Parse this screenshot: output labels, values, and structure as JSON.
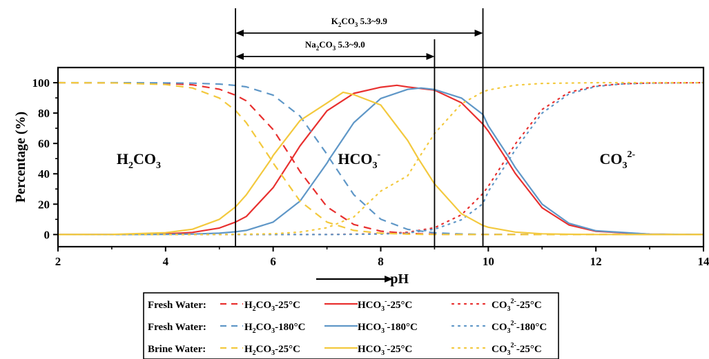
{
  "chart_data": {
    "type": "line",
    "xlabel": "pH",
    "ylabel": "Percentage (%)",
    "xlim": [
      2,
      14
    ],
    "ylim": [
      -8,
      110
    ],
    "xticks": [
      2,
      4,
      6,
      8,
      10,
      12,
      14
    ],
    "yticks": [
      0,
      20,
      40,
      60,
      80,
      100
    ],
    "grid": false,
    "legend_position": "bottom",
    "regions": [
      {
        "species": "H2CO3",
        "text": "H",
        "sub": "2",
        "tail": "CO",
        "sub2": "3",
        "sup": "",
        "x": 3.5,
        "y": 50
      },
      {
        "species": "HCO3-",
        "text": "HCO",
        "sub": "3",
        "tail": "",
        "sub2": "",
        "sup": "-",
        "x": 7.6,
        "y": 50
      },
      {
        "species": "CO32-",
        "text": "CO",
        "sub": "3",
        "tail": "",
        "sub2": "",
        "sup": "2-",
        "x": 12.4,
        "y": 50
      }
    ],
    "vertical_lines": [
      5.3,
      9.0,
      9.9
    ],
    "ranges": [
      {
        "name": "K2CO3",
        "label_base": "K",
        "label_sub": "2",
        "label_mid": "CO",
        "label_sub2": "3",
        "label_tail": " 5.3~9.9",
        "from": 5.3,
        "to": 9.9
      },
      {
        "name": "Na2CO3",
        "label_base": "Na",
        "label_sub": "2",
        "label_mid": "CO",
        "label_sub2": "3",
        "label_tail": " 5.3~9.0",
        "from": 5.3,
        "to": 9.0
      }
    ],
    "ph_arrow": {
      "from": 6.8,
      "to": 8.2
    },
    "conditions": [
      {
        "group": "Fresh Water:",
        "temp": "25°C",
        "pK1": 6.35,
        "pK2": 10.33,
        "color": "#e8302f"
      },
      {
        "group": "Fresh Water:",
        "temp": "180°C",
        "pK1": 7.05,
        "pK2": 10.4,
        "color": "#5f97c7"
      },
      {
        "group": "Brine Water:",
        "temp": "25°C",
        "pK1": 5.95,
        "pK2": 8.7,
        "color": "#f3c93e"
      }
    ],
    "species_labels": {
      "h2co3": {
        "base": "H",
        "sub": "2",
        "tail": "CO",
        "sub2": "3"
      },
      "hco3": {
        "base": "HCO",
        "sub": "3",
        "sup": "-"
      },
      "co3": {
        "base": "CO",
        "sub": "3",
        "sup": "2-"
      }
    },
    "series": [
      {
        "species": "H2CO3",
        "condition": 0,
        "style": "dashed",
        "x": [
          2,
          3,
          4,
          4.5,
          5,
          5.3,
          5.5,
          6,
          6.35,
          6.5,
          7,
          7.5,
          8,
          8.5,
          9,
          10,
          11,
          12,
          13,
          14
        ],
        "values": [
          100,
          99.9,
          99.6,
          98.6,
          95.7,
          91.8,
          88.1,
          69.1,
          50,
          41.5,
          18.3,
          6.6,
          2.2,
          0.7,
          0.2,
          0,
          0,
          0,
          0,
          0
        ]
      },
      {
        "species": "HCO3-",
        "condition": 0,
        "style": "solid",
        "x": [
          2,
          3,
          4,
          4.5,
          5,
          5.3,
          5.5,
          6,
          6.35,
          6.5,
          7,
          7.5,
          8,
          8.3,
          8.5,
          9,
          9.5,
          9.9,
          10,
          10.33,
          10.5,
          11,
          11.5,
          12,
          13,
          14
        ],
        "values": [
          0,
          0.04,
          0.4,
          1.4,
          4.3,
          8.2,
          11.9,
          30.9,
          50,
          58.4,
          81.5,
          93,
          97,
          98.3,
          97.2,
          95.1,
          86.8,
          72.7,
          68.1,
          50,
          40.3,
          17.6,
          6.3,
          2.1,
          0.2,
          0
        ]
      },
      {
        "species": "CO32-",
        "condition": 0,
        "style": "dotted",
        "x": [
          2,
          5,
          6,
          7,
          8,
          8.5,
          9,
          9.5,
          9.9,
          10,
          10.33,
          10.5,
          11,
          11.5,
          12,
          12.5,
          13,
          14
        ],
        "values": [
          0,
          0,
          0,
          0.05,
          0.5,
          1.5,
          4.5,
          13,
          27,
          31.8,
          50,
          59.6,
          82.4,
          93.7,
          97.9,
          99.3,
          99.8,
          100
        ]
      },
      {
        "species": "H2CO3",
        "condition": 1,
        "style": "dashed",
        "x": [
          2,
          3,
          4,
          4.5,
          5,
          5.3,
          5.5,
          6,
          6.5,
          7,
          7.05,
          7.5,
          8,
          8.5,
          9,
          9.5,
          10,
          11,
          12,
          14
        ],
        "values": [
          100,
          100,
          99.9,
          99.7,
          99.1,
          98.2,
          97.3,
          91.8,
          78,
          52.9,
          50,
          26.2,
          10.1,
          3.4,
          1.1,
          0.35,
          0.1,
          0,
          0,
          0
        ]
      },
      {
        "species": "HCO3-",
        "condition": 1,
        "style": "solid",
        "x": [
          2,
          3,
          4,
          4.5,
          5,
          5.3,
          5.5,
          6,
          6.5,
          7,
          7.05,
          7.5,
          8,
          8.5,
          8.75,
          9,
          9.5,
          9.9,
          10,
          10.4,
          10.5,
          11,
          11.5,
          12,
          13,
          14
        ],
        "values": [
          0,
          0,
          0.1,
          0.3,
          0.9,
          1.8,
          2.7,
          8.2,
          22,
          47,
          50,
          73.7,
          89.6,
          95.6,
          96.5,
          95.5,
          89.9,
          79.1,
          71.6,
          50,
          44.2,
          20,
          7.4,
          2.5,
          0.25,
          0
        ]
      },
      {
        "species": "CO32-",
        "condition": 1,
        "style": "dotted",
        "x": [
          2,
          6,
          7,
          8,
          8.5,
          9,
          9.5,
          9.9,
          10,
          10.4,
          10.5,
          11,
          11.5,
          12,
          12.5,
          13,
          14
        ],
        "values": [
          0,
          0,
          0.01,
          0.3,
          1,
          3.5,
          9.7,
          20.3,
          28.4,
          50,
          55.8,
          80,
          92.6,
          97.5,
          99.2,
          99.7,
          100
        ]
      },
      {
        "species": "H2CO3",
        "condition": 2,
        "style": "dashed",
        "x": [
          2,
          3,
          4,
          4.5,
          5,
          5.3,
          5.5,
          5.95,
          6,
          6.5,
          7,
          7.5,
          8,
          8.5,
          9,
          10,
          12,
          14
        ],
        "values": [
          100,
          99.9,
          98.8,
          96.5,
          89.9,
          81.7,
          73.7,
          50,
          47.1,
          22,
          8.2,
          2.7,
          0.9,
          0.25,
          0.05,
          0,
          0,
          0
        ]
      },
      {
        "species": "HCO3-",
        "condition": 2,
        "style": "solid",
        "x": [
          2,
          3,
          4,
          4.5,
          5,
          5.3,
          5.5,
          5.95,
          6,
          6.5,
          7,
          7.3,
          7.5,
          8,
          8.5,
          8.7,
          9,
          9.5,
          9.9,
          10,
          10.5,
          11,
          11.5,
          12,
          13,
          14
        ],
        "values": [
          0,
          0.1,
          1.2,
          3.5,
          10,
          18.2,
          26.1,
          49,
          52.1,
          75.1,
          86.6,
          93.7,
          92.1,
          85.3,
          62,
          50,
          33.4,
          13.7,
          6,
          4.8,
          1.6,
          0.5,
          0.15,
          0.05,
          0,
          0
        ]
      },
      {
        "species": "CO32-",
        "condition": 2,
        "style": "dotted",
        "x": [
          2,
          5,
          6,
          6.5,
          7,
          7.5,
          8,
          8.5,
          8.7,
          9,
          9.5,
          9.9,
          10,
          10.5,
          11,
          12,
          13,
          14
        ],
        "values": [
          0,
          0,
          0.5,
          1.6,
          4.5,
          11.6,
          28.6,
          38.7,
          50,
          66.5,
          86.1,
          94,
          95.2,
          98.4,
          99.5,
          100,
          100,
          100
        ]
      }
    ]
  }
}
